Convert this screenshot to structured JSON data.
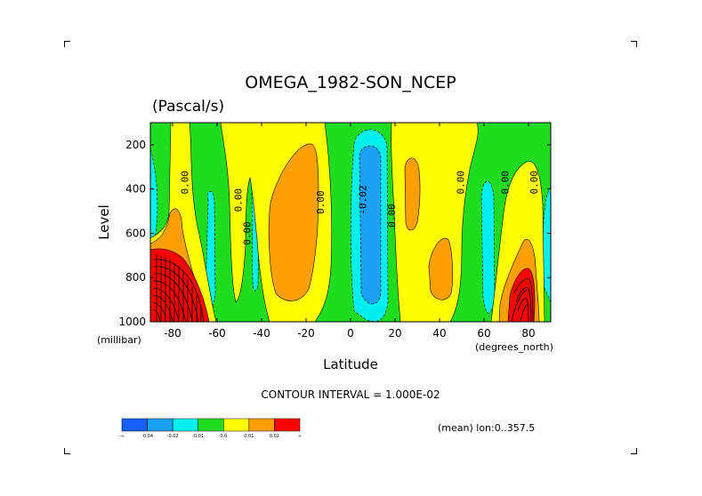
{
  "chart_data": {
    "type": "heatmap",
    "title": "OMEGA_1982-SON_NCEP",
    "units": "(Pascal/s)",
    "xlabel": "Latitude",
    "x_units": "(degrees_north)",
    "ylabel": "Level",
    "y_units": "(millibar)",
    "xlim": [
      -90,
      90
    ],
    "ylim": [
      1000,
      100
    ],
    "x_ticks": [
      -80,
      -60,
      -40,
      -20,
      0,
      20,
      40,
      60,
      80
    ],
    "x_tick_labels": [
      "-80",
      "-60",
      "-40",
      "-20",
      "0",
      "20",
      "40",
      "60",
      "80"
    ],
    "y_ticks": [
      200,
      400,
      600,
      800,
      1000
    ],
    "y_tick_labels": [
      "200",
      "400",
      "600",
      "800",
      "1000"
    ],
    "contour_interval_text": "CONTOUR INTERVAL = 1.000E-02",
    "mean_text": "(mean) lon:0..357.5",
    "contour_labels": [
      {
        "text": "0.00",
        "lat": -73,
        "level": 370
      },
      {
        "text": "0.00",
        "lat": -49,
        "level": 450
      },
      {
        "text": "0.00",
        "lat": -45,
        "level": 600
      },
      {
        "text": "0.00",
        "lat": -12,
        "level": 460
      },
      {
        "text": "-0.02",
        "lat": 7,
        "level": 450
      },
      {
        "text": "0.00",
        "lat": 20,
        "level": 520
      },
      {
        "text": "0.00",
        "lat": 51,
        "level": 370
      },
      {
        "text": "0.00",
        "lat": 71,
        "level": 370
      },
      {
        "text": "0.00",
        "lat": 84,
        "level": 370
      }
    ],
    "colorbar": {
      "colors": [
        "#1660ff",
        "#1aa0f0",
        "#00f0f0",
        "#1edc1e",
        "#ffff00",
        "#ffa000",
        "#ff0000"
      ],
      "labels": [
        "-∞",
        "-0.04",
        "-0.02",
        "-0.01",
        "0.0",
        "0.01",
        "0.02",
        "∞"
      ]
    },
    "field_color_key": {
      "background": "#1edc1e",
      "positive_weak": "#ffff00",
      "positive_moderate": "#ffa000",
      "positive_strong": "#ff0000",
      "negative_weak": "#00f0f0",
      "negative_moderate": "#1aa0f0"
    }
  }
}
